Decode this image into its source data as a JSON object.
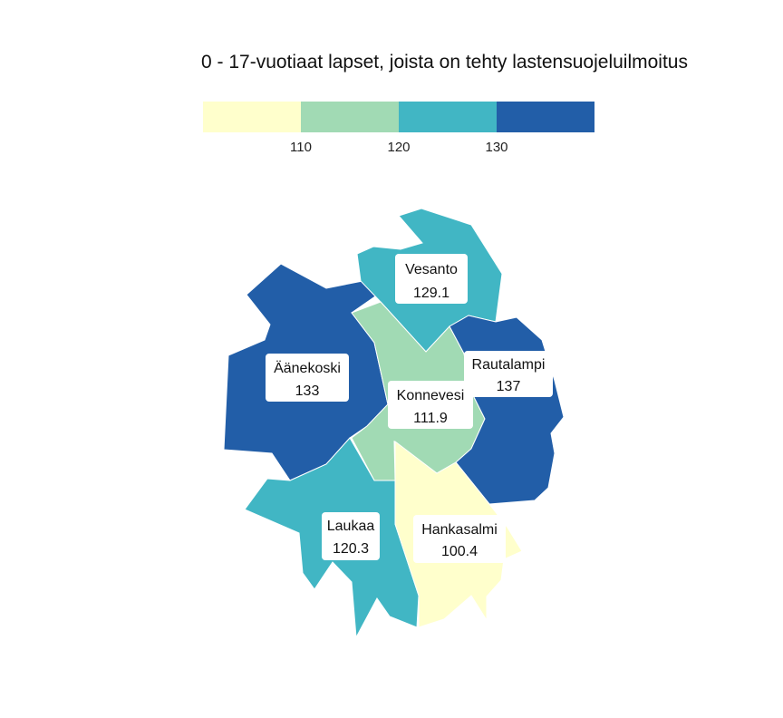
{
  "title": "0 - 17-vuotiaat lapset, joista on tehty lastensuojeluilmoitus",
  "legend": {
    "colors": [
      "#ffffcc",
      "#a1dab4",
      "#41b6c4",
      "#225ea8"
    ],
    "ticks": [
      "110",
      "120",
      "130"
    ]
  },
  "regions": [
    {
      "name": "Vesanto",
      "value": "129.1",
      "color": "#41b6c4"
    },
    {
      "name": "Äänekoski",
      "value": "133",
      "color": "#225ea8"
    },
    {
      "name": "Rautalampi",
      "value": "137",
      "color": "#225ea8"
    },
    {
      "name": "Konnevesi",
      "value": "111.9",
      "color": "#a1dab4"
    },
    {
      "name": "Laukaa",
      "value": "120.3",
      "color": "#41b6c4"
    },
    {
      "name": "Hankasalmi",
      "value": "100.4",
      "color": "#ffffcc"
    }
  ]
}
